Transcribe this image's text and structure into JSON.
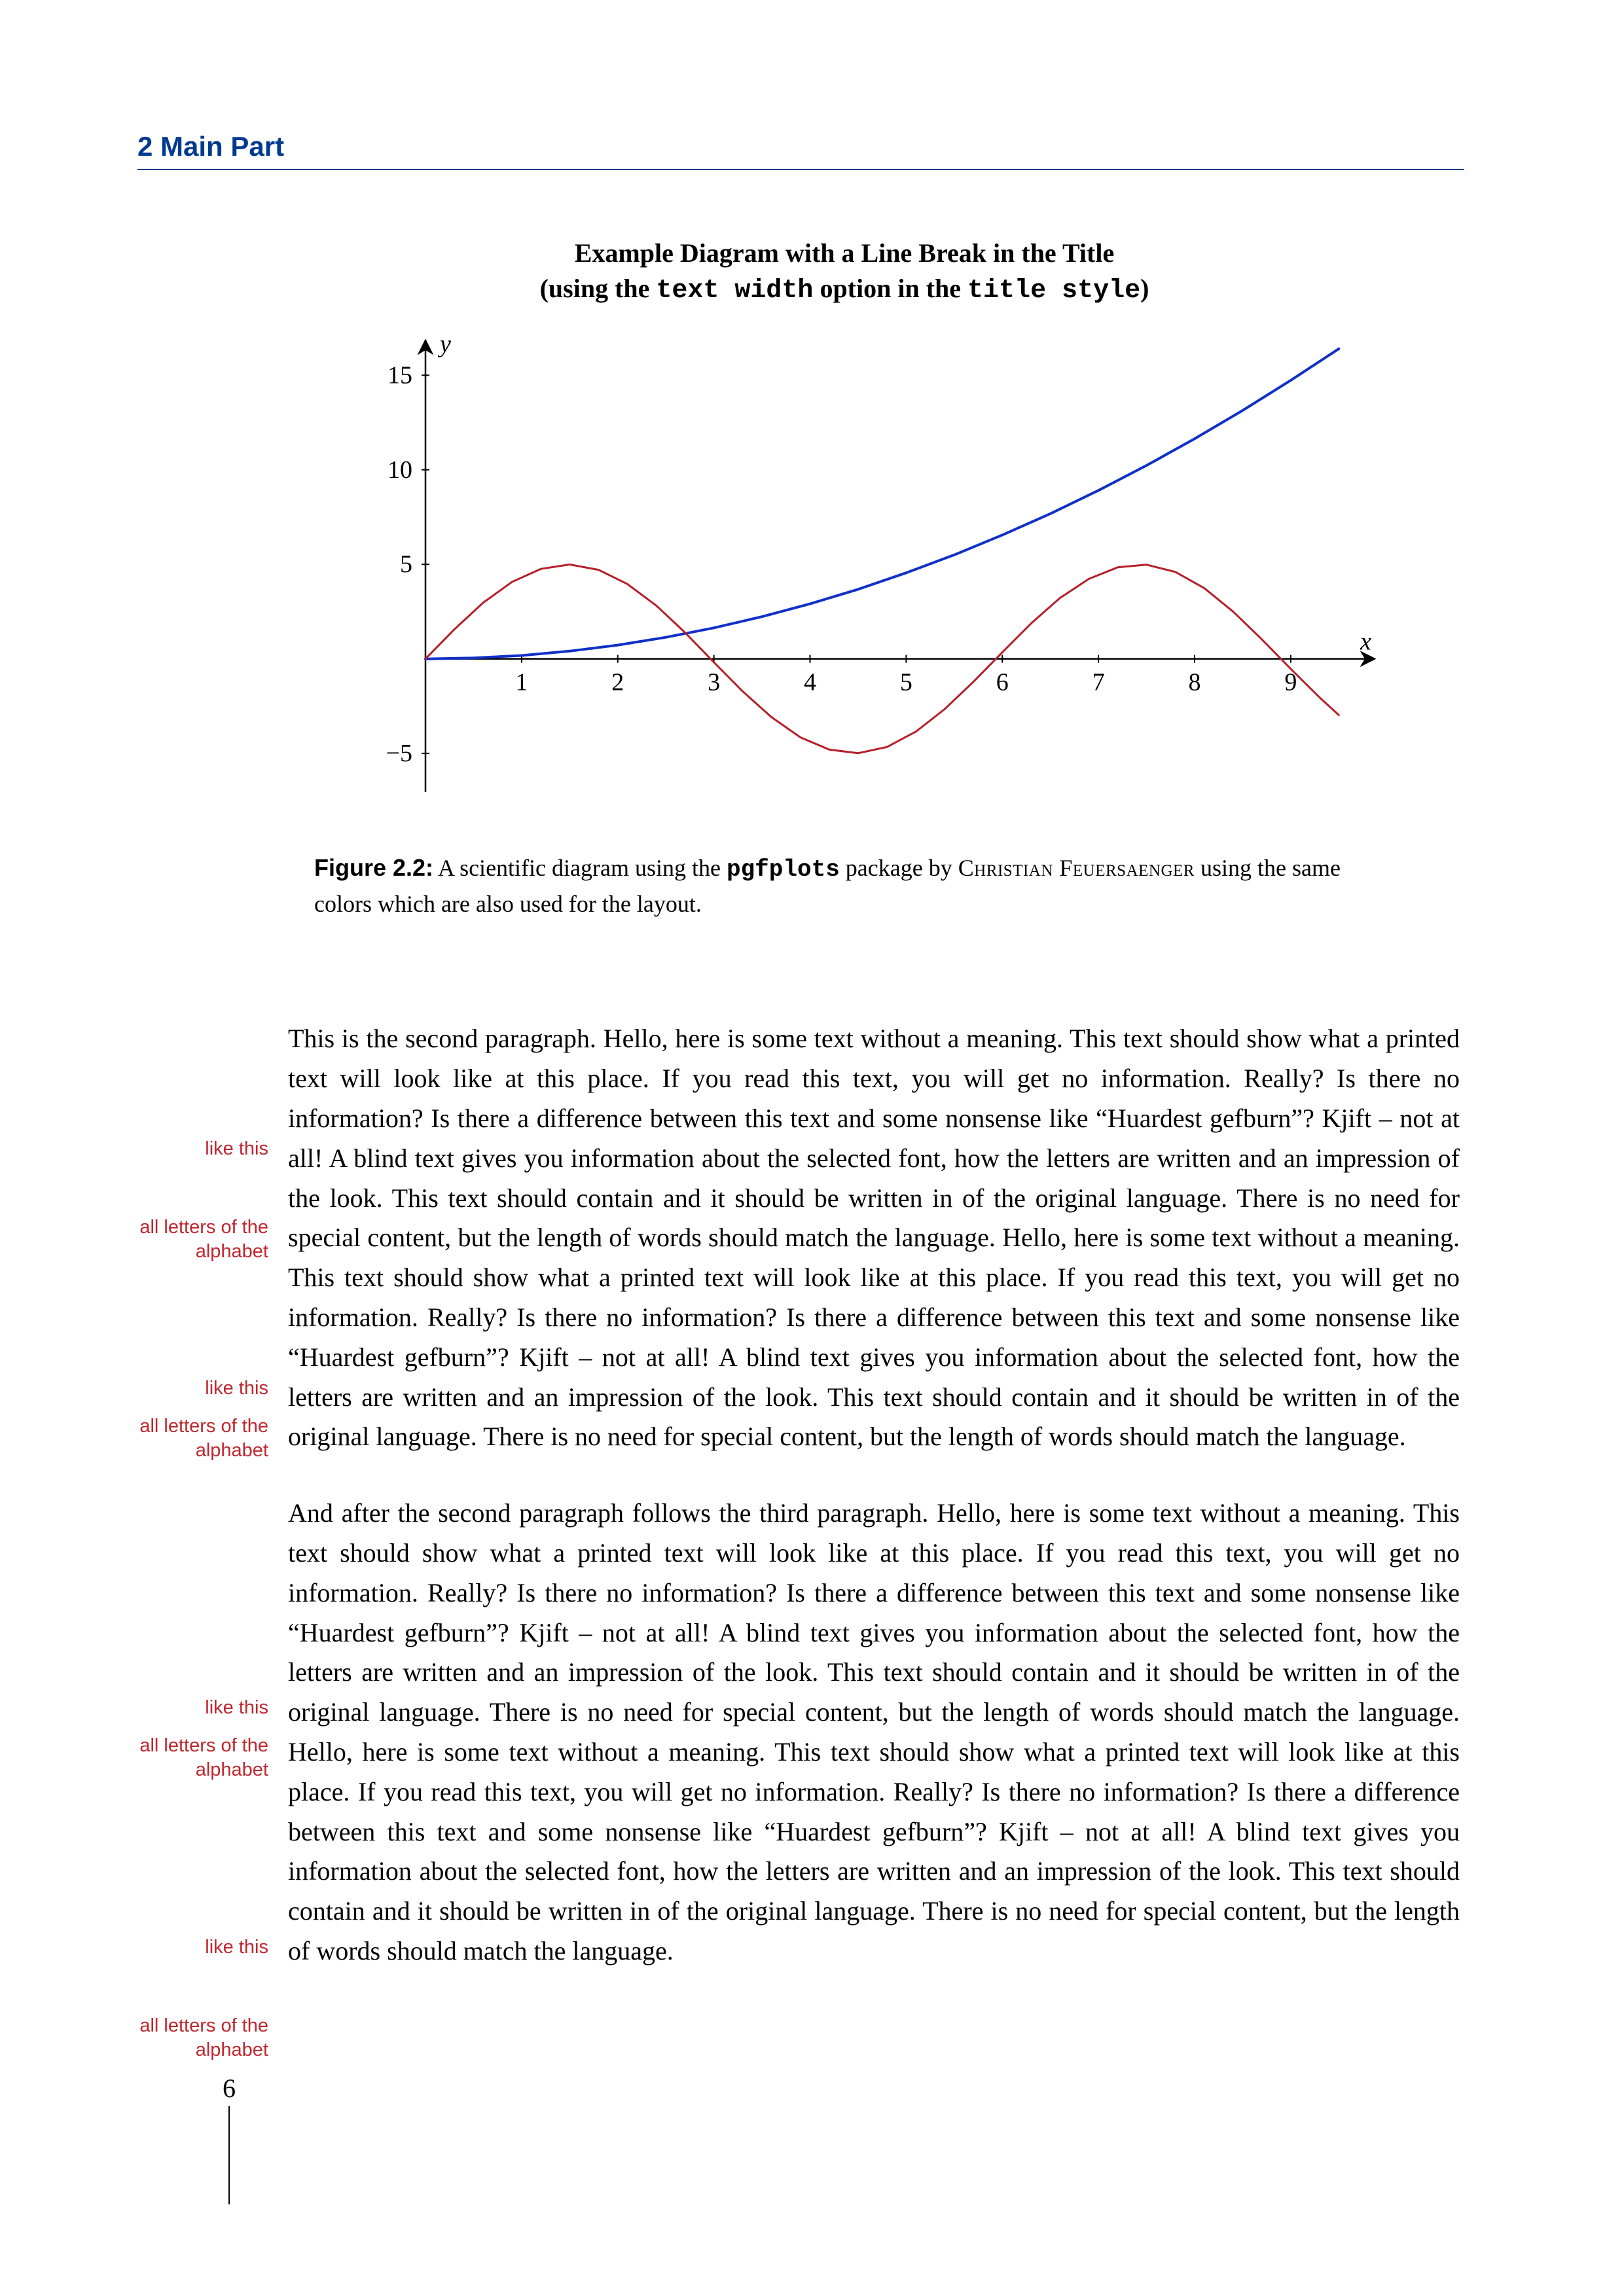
{
  "header": {
    "chapter": "2 Main Part"
  },
  "figure": {
    "title_line1": "Example Diagram with a Line Break in the Title",
    "title_line2_pre": "(using the ",
    "title_line2_mono1": "text width",
    "title_line2_mid": " option in the ",
    "title_line2_mono2": "title style",
    "title_line2_post": ")",
    "caption_label": "Figure 2.2:",
    "caption_text_pre": " A scientific diagram using the ",
    "caption_mono": "pgfplots",
    "caption_text_mid": " package by ",
    "caption_author": "Christian Feuersaenger",
    "caption_text_post": " using the same colors which are also used for the layout.",
    "chart": {
      "type": "line",
      "xlabel": "x",
      "ylabel": "y",
      "xlim": [
        0,
        9.6
      ],
      "ylim": [
        -6,
        16.5
      ],
      "xticks": [
        1,
        2,
        3,
        4,
        5,
        6,
        7,
        8,
        9
      ],
      "yticks": [
        -5,
        5,
        10,
        15
      ],
      "xtick_labels": [
        "1",
        "2",
        "3",
        "4",
        "5",
        "6",
        "7",
        "8",
        "9"
      ],
      "ytick_labels": [
        "−5",
        "5",
        "10",
        "15"
      ],
      "grid_color": "#000000",
      "background_color": "#ffffff",
      "axis_color": "#000000",
      "series": [
        {
          "name": "quadratic",
          "color": "#1030c8",
          "line_width": 4,
          "data": [
            [
              0,
              0
            ],
            [
              0.5,
              0.05
            ],
            [
              1,
              0.18
            ],
            [
              1.5,
              0.41
            ],
            [
              2,
              0.73
            ],
            [
              2.5,
              1.14
            ],
            [
              3,
              1.64
            ],
            [
              3.5,
              2.23
            ],
            [
              4,
              2.91
            ],
            [
              4.5,
              3.68
            ],
            [
              5,
              4.55
            ],
            [
              5.5,
              5.5
            ],
            [
              6,
              6.55
            ],
            [
              6.5,
              7.68
            ],
            [
              7,
              8.91
            ],
            [
              7.5,
              10.23
            ],
            [
              8,
              11.64
            ],
            [
              8.5,
              13.14
            ],
            [
              9,
              14.73
            ],
            [
              9.5,
              16.4
            ]
          ]
        },
        {
          "name": "sine",
          "color": "#b5202a",
          "line_width": 3,
          "data": [
            [
              0,
              0
            ],
            [
              0.3,
              1.56
            ],
            [
              0.6,
              2.97
            ],
            [
              0.9,
              4.07
            ],
            [
              1.2,
              4.76
            ],
            [
              1.5,
              4.99
            ],
            [
              1.8,
              4.71
            ],
            [
              2.1,
              3.96
            ],
            [
              2.4,
              2.82
            ],
            [
              2.7,
              1.39
            ],
            [
              3.0,
              -0.18
            ],
            [
              3.3,
              -1.72
            ],
            [
              3.6,
              -3.09
            ],
            [
              3.9,
              -4.15
            ],
            [
              4.2,
              -4.8
            ],
            [
              4.5,
              -4.99
            ],
            [
              4.8,
              -4.66
            ],
            [
              5.1,
              -3.85
            ],
            [
              5.4,
              -2.66
            ],
            [
              5.7,
              -1.21
            ],
            [
              6.0,
              0.35
            ],
            [
              6.3,
              1.88
            ],
            [
              6.6,
              3.22
            ],
            [
              6.9,
              4.23
            ],
            [
              7.2,
              4.84
            ],
            [
              7.5,
              4.98
            ],
            [
              7.8,
              4.6
            ],
            [
              8.1,
              3.74
            ],
            [
              8.4,
              2.5
            ],
            [
              8.7,
              1.03
            ],
            [
              9.0,
              -0.53
            ],
            [
              9.3,
              -2.04
            ],
            [
              9.5,
              -2.97
            ]
          ]
        }
      ]
    }
  },
  "paragraphs": {
    "p1": "This is the second paragraph. Hello, here is some text without a meaning. This text should show what a printed text will look like at this place. If you read this text, you will get no information. Really? Is there no information? Is there a difference between this text and some nonsense like “Huardest gefburn”? Kjift – not at all! A blind text gives you information about the selected font, how the letters are written and an impression of the look. This text should contain and it should be written in of the original language. There is no need for special content, but the length of words should match the language. Hello, here is some text without a meaning. This text should show what a printed text will look like at this place. If you read this text, you will get no information. Really? Is there no information? Is there a difference between this text and some nonsense like “Huardest gefburn”? Kjift – not at all! A blind text gives you information about the selected font, how the letters are written and an impression of the look. This text should contain and it should be written in of the original language. There is no need for special content, but the length of words should match the language.",
    "p2": "And after the second paragraph follows the third paragraph. Hello, here is some text without a meaning. This text should show what a printed text will look like at this place. If you read this text, you will get no information. Really? Is there no information? Is there a difference between this text and some nonsense like “Huardest gefburn”? Kjift – not at all! A blind text gives you information about the selected font, how the letters are written and an impression of the look. This text should contain and it should be written in of the original language. There is no need for special content, but the length of words should match the language. Hello, here is some text without a meaning. This text should show what a printed text will look like at this place. If you read this text, you will get no information. Really? Is there no information? Is there a difference between this text and some nonsense like “Huardest gefburn”? Kjift – not at all! A blind text gives you information about the selected font, how the letters are written and an impression of the look. This text should contain and it should be written in of the original language. There is no need for special content, but the length of words should match the language."
  },
  "margin_notes": {
    "n1": "like this",
    "n2": "all letters of the alphabet",
    "n3": "like this",
    "n4": "all letters of the alphabet",
    "n5": "like this",
    "n6": "all letters of the alphabet",
    "n7": "like this",
    "n8": "all letters of the alphabet"
  },
  "page_number": "6"
}
